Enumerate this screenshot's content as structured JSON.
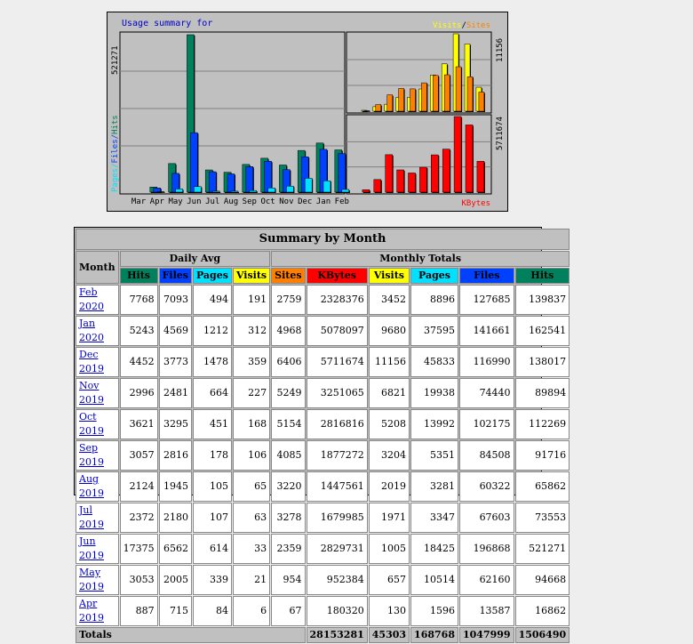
{
  "chart_data": {
    "type": "bar",
    "title": "Usage summary for",
    "categories": [
      "Mar",
      "Apr",
      "May",
      "Jun",
      "Jul",
      "Aug",
      "Sep",
      "Oct",
      "Nov",
      "Dec",
      "Jan",
      "Feb"
    ],
    "left_panel": {
      "ylabel": "Pages / Files / Hits",
      "ymax_label": "521271",
      "series": [
        {
          "name": "Hits",
          "color": "#00805c",
          "values": [
            0,
            16862,
            94668,
            521271,
            73553,
            65862,
            91716,
            112269,
            89894,
            138017,
            162541,
            139837
          ]
        },
        {
          "name": "Files",
          "color": "#0040ff",
          "values": [
            0,
            13587,
            62160,
            196868,
            67603,
            60322,
            84508,
            102175,
            74440,
            116990,
            141661,
            127685
          ]
        },
        {
          "name": "Pages",
          "color": "#00e0ff",
          "values": [
            0,
            1596,
            10514,
            18425,
            3347,
            3281,
            5351,
            13992,
            19938,
            45833,
            37595,
            8896
          ]
        }
      ]
    },
    "right_top_panel": {
      "legend": [
        "Visits",
        "/",
        "Sites"
      ],
      "ymax_label": "11156",
      "series": [
        {
          "name": "Visits",
          "color": "#ffff00",
          "values": [
            0,
            130,
            657,
            1005,
            1971,
            2019,
            3204,
            5208,
            6821,
            11156,
            9680,
            3452
          ]
        },
        {
          "name": "Sites",
          "color": "#ff8000",
          "values": [
            0,
            67,
            954,
            2359,
            3278,
            3220,
            4085,
            5154,
            5249,
            6406,
            4968,
            2759
          ]
        }
      ]
    },
    "right_bottom_panel": {
      "legend": "KBytes",
      "ymax_label": "5711674",
      "series": [
        {
          "name": "KBytes",
          "color": "#ff0000",
          "values": [
            0,
            180320,
            952384,
            2829731,
            1679985,
            1447561,
            1877272,
            2816816,
            3251065,
            5711674,
            5078097,
            2328376
          ]
        }
      ]
    }
  },
  "table": {
    "title": "Summary by Month",
    "month_header": "Month",
    "daily_avg_header": "Daily Avg",
    "monthly_totals_header": "Monthly Totals",
    "daily_cols": [
      "Hits",
      "Files",
      "Pages",
      "Visits"
    ],
    "monthly_cols": [
      "Sites",
      "KBytes",
      "Visits",
      "Pages",
      "Files",
      "Hits"
    ],
    "rows": [
      {
        "month": "Feb 2020",
        "d": [
          "7768",
          "7093",
          "494",
          "191"
        ],
        "m": [
          "2759",
          "2328376",
          "3452",
          "8896",
          "127685",
          "139837"
        ]
      },
      {
        "month": "Jan 2020",
        "d": [
          "5243",
          "4569",
          "1212",
          "312"
        ],
        "m": [
          "4968",
          "5078097",
          "9680",
          "37595",
          "141661",
          "162541"
        ]
      },
      {
        "month": "Dec 2019",
        "d": [
          "4452",
          "3773",
          "1478",
          "359"
        ],
        "m": [
          "6406",
          "5711674",
          "11156",
          "45833",
          "116990",
          "138017"
        ]
      },
      {
        "month": "Nov 2019",
        "d": [
          "2996",
          "2481",
          "664",
          "227"
        ],
        "m": [
          "5249",
          "3251065",
          "6821",
          "19938",
          "74440",
          "89894"
        ]
      },
      {
        "month": "Oct 2019",
        "d": [
          "3621",
          "3295",
          "451",
          "168"
        ],
        "m": [
          "5154",
          "2816816",
          "5208",
          "13992",
          "102175",
          "112269"
        ]
      },
      {
        "month": "Sep 2019",
        "d": [
          "3057",
          "2816",
          "178",
          "106"
        ],
        "m": [
          "4085",
          "1877272",
          "3204",
          "5351",
          "84508",
          "91716"
        ]
      },
      {
        "month": "Aug 2019",
        "d": [
          "2124",
          "1945",
          "105",
          "65"
        ],
        "m": [
          "3220",
          "1447561",
          "2019",
          "3281",
          "60322",
          "65862"
        ]
      },
      {
        "month": "Jul 2019",
        "d": [
          "2372",
          "2180",
          "107",
          "63"
        ],
        "m": [
          "3278",
          "1679985",
          "1971",
          "3347",
          "67603",
          "73553"
        ]
      },
      {
        "month": "Jun 2019",
        "d": [
          "17375",
          "6562",
          "614",
          "33"
        ],
        "m": [
          "2359",
          "2829731",
          "1005",
          "18425",
          "196868",
          "521271"
        ]
      },
      {
        "month": "May 2019",
        "d": [
          "3053",
          "2005",
          "339",
          "21"
        ],
        "m": [
          "954",
          "952384",
          "657",
          "10514",
          "62160",
          "94668"
        ]
      },
      {
        "month": "Apr 2019",
        "d": [
          "887",
          "715",
          "84",
          "6"
        ],
        "m": [
          "67",
          "180320",
          "130",
          "1596",
          "13587",
          "16862"
        ]
      }
    ],
    "totals_label": "Totals",
    "totals": [
      "28153281",
      "45303",
      "168768",
      "1047999",
      "1506490"
    ]
  }
}
